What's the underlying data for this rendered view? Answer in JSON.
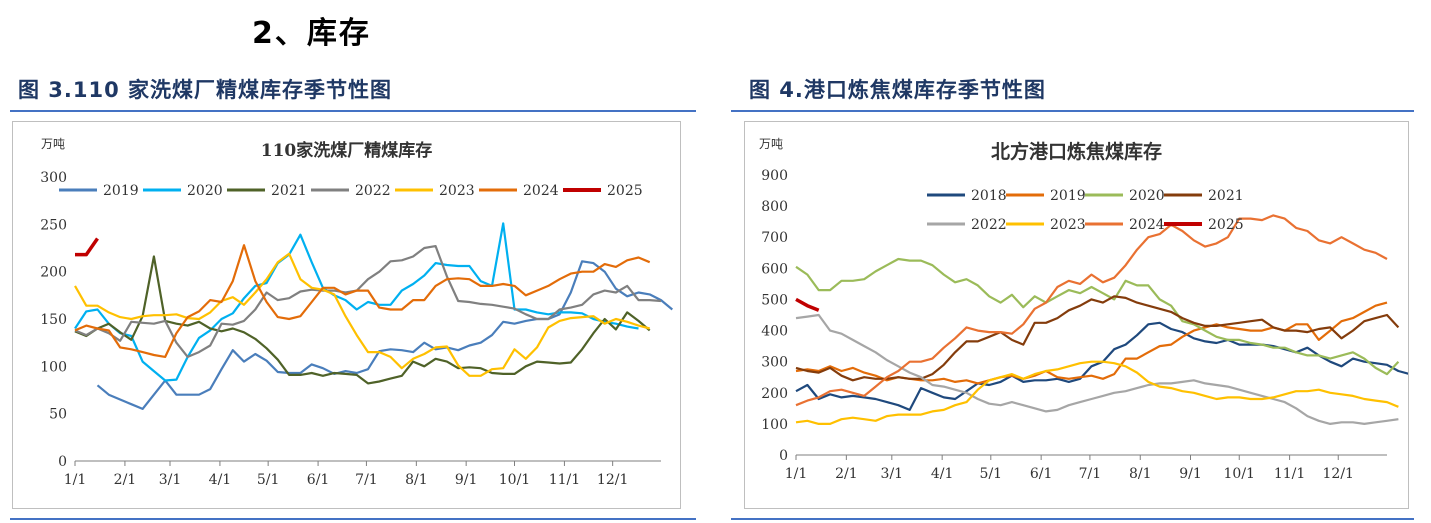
{
  "section_title": "2、库存",
  "figures": [
    {
      "title": "图 3.110 家洗煤厂精煤库存季节性图"
    },
    {
      "title": "图 4.港口炼焦煤库存季节性图"
    }
  ],
  "chart_data": [
    {
      "type": "line",
      "title": "110家洗煤厂精煤库存",
      "unit": "万吨",
      "ylim": [
        0,
        300
      ],
      "yticks": [
        0,
        50,
        100,
        150,
        200,
        250,
        300
      ],
      "xlim": [
        0,
        52
      ],
      "x_ticks": [
        {
          "label": "1/1",
          "week": 0
        },
        {
          "label": "2/1",
          "week": 4.43
        },
        {
          "label": "3/1",
          "week": 8.43
        },
        {
          "label": "4/1",
          "week": 12.86
        },
        {
          "label": "5/1",
          "week": 17.14
        },
        {
          "label": "6/1",
          "week": 21.57
        },
        {
          "label": "7/1",
          "week": 25.86
        },
        {
          "label": "8/1",
          "week": 30.29
        },
        {
          "label": "9/1",
          "week": 34.71
        },
        {
          "label": "10/1",
          "week": 39
        },
        {
          "label": "11/1",
          "week": 43.43
        },
        {
          "label": "12/1",
          "week": 47.71
        }
      ],
      "grid": false,
      "legend_position": "top",
      "series": [
        {
          "name": "2019",
          "color": "#4a7ebb",
          "start": 2,
          "values": [
            80,
            70,
            65,
            60,
            55,
            70,
            85,
            70,
            70,
            70,
            76,
            97,
            117,
            105,
            113,
            106,
            94,
            93,
            93,
            102,
            98,
            92,
            95,
            93,
            97,
            116,
            118,
            117,
            115,
            125,
            118,
            120,
            117,
            122,
            125,
            133,
            147,
            145,
            148,
            150,
            150,
            155,
            178,
            211,
            209,
            200,
            182,
            174,
            178,
            176,
            170,
            160
          ]
        },
        {
          "name": "2020",
          "color": "#00b0f0",
          "start": 0,
          "values": [
            140,
            158,
            160,
            145,
            135,
            132,
            105,
            95,
            85,
            86,
            110,
            130,
            138,
            150,
            156,
            172,
            185,
            188,
            209,
            218,
            239,
            210,
            183,
            175,
            170,
            160,
            168,
            165,
            165,
            180,
            187,
            196,
            209,
            207,
            206,
            206,
            190,
            185,
            251,
            160,
            160,
            157,
            155,
            157,
            157,
            156,
            150,
            147,
            145,
            142,
            140
          ]
        },
        {
          "name": "2021",
          "color": "#4f6228",
          "start": 0,
          "values": [
            137,
            132,
            140,
            145,
            136,
            128,
            153,
            216,
            148,
            145,
            143,
            147,
            140,
            137,
            140,
            136,
            129,
            119,
            107,
            91,
            91,
            93,
            90,
            93,
            92,
            91,
            82,
            84,
            87,
            90,
            105,
            100,
            108,
            105,
            98,
            99,
            98,
            93,
            92,
            92,
            100,
            105,
            104,
            103,
            104,
            118,
            135,
            150,
            139,
            157,
            148,
            138
          ]
        },
        {
          "name": "2022",
          "color": "#808080",
          "start": 0,
          "values": [
            138,
            133,
            140,
            135,
            127,
            147,
            146,
            145,
            148,
            125,
            110,
            115,
            122,
            145,
            144,
            148,
            160,
            178,
            170,
            172,
            179,
            181,
            180,
            180,
            178,
            180,
            192,
            200,
            211,
            212,
            216,
            225,
            227,
            195,
            169,
            168,
            166,
            165,
            163,
            161,
            155,
            150,
            150,
            160,
            162,
            165,
            176,
            180,
            178,
            185,
            170,
            170,
            169
          ]
        },
        {
          "name": "2023",
          "color": "#ffc000",
          "start": 0,
          "values": [
            185,
            164,
            164,
            157,
            152,
            150,
            153,
            154,
            154,
            155,
            151,
            150,
            157,
            169,
            173,
            165,
            178,
            192,
            210,
            219,
            192,
            183,
            181,
            176,
            153,
            133,
            115,
            115,
            110,
            98,
            108,
            113,
            120,
            121,
            101,
            90,
            90,
            97,
            98,
            118,
            108,
            120,
            141,
            148,
            151,
            152,
            153,
            145,
            150,
            147,
            143,
            140
          ]
        },
        {
          "name": "2024",
          "color": "#e36c09",
          "start": 0,
          "values": [
            138,
            143,
            140,
            138,
            120,
            118,
            115,
            112,
            110,
            135,
            152,
            158,
            170,
            168,
            190,
            228,
            190,
            168,
            152,
            150,
            153,
            168,
            183,
            183,
            176,
            180,
            180,
            162,
            160,
            160,
            170,
            170,
            185,
            192,
            193,
            192,
            185,
            185,
            187,
            185,
            175,
            180,
            185,
            192,
            198,
            200,
            200,
            208,
            205,
            212,
            215,
            210
          ]
        },
        {
          "name": "2025",
          "color": "#c00000",
          "start": 0,
          "values": [
            218,
            218,
            235
          ]
        }
      ]
    },
    {
      "type": "line",
      "title": "北方港口炼焦煤库存",
      "unit": "万吨",
      "ylim": [
        0,
        900
      ],
      "yticks": [
        0,
        100,
        200,
        300,
        400,
        500,
        600,
        700,
        800,
        900
      ],
      "xlim": [
        0,
        52
      ],
      "x_ticks": [
        {
          "label": "1/1",
          "week": 0
        },
        {
          "label": "2/1",
          "week": 4.43
        },
        {
          "label": "3/1",
          "week": 8.43
        },
        {
          "label": "4/1",
          "week": 12.86
        },
        {
          "label": "5/1",
          "week": 17.14
        },
        {
          "label": "6/1",
          "week": 21.57
        },
        {
          "label": "7/1",
          "week": 25.86
        },
        {
          "label": "8/1",
          "week": 30.29
        },
        {
          "label": "9/1",
          "week": 34.71
        },
        {
          "label": "10/1",
          "week": 39
        },
        {
          "label": "11/1",
          "week": 43.43
        },
        {
          "label": "12/1",
          "week": 47.71
        }
      ],
      "grid": false,
      "legend_position": "top",
      "series": [
        {
          "name": "2018",
          "color": "#1f497d",
          "start": 0,
          "values": [
            205,
            225,
            180,
            195,
            185,
            190,
            185,
            180,
            170,
            160,
            145,
            215,
            200,
            185,
            180,
            205,
            230,
            225,
            235,
            255,
            235,
            240,
            240,
            245,
            235,
            245,
            285,
            300,
            340,
            355,
            385,
            420,
            425,
            405,
            395,
            375,
            365,
            360,
            370,
            355,
            355,
            355,
            350,
            340,
            330,
            345,
            320,
            300,
            285,
            310,
            300,
            295,
            290,
            270,
            260
          ]
        },
        {
          "name": "2019",
          "color": "#e36c09",
          "start": 0,
          "values": [
            270,
            275,
            270,
            285,
            270,
            280,
            265,
            255,
            240,
            250,
            245,
            240,
            240,
            245,
            235,
            240,
            230,
            240,
            250,
            255,
            245,
            255,
            270,
            250,
            245,
            250,
            255,
            245,
            260,
            310,
            310,
            330,
            350,
            355,
            380,
            400,
            410,
            420,
            410,
            405,
            400,
            400,
            410,
            400,
            420,
            420,
            370,
            400,
            430,
            440,
            460,
            480,
            490
          ]
        },
        {
          "name": "2020",
          "color": "#9bbb59",
          "start": 0,
          "values": [
            605,
            580,
            530,
            530,
            560,
            560,
            565,
            590,
            610,
            630,
            625,
            625,
            610,
            580,
            555,
            565,
            545,
            510,
            490,
            515,
            475,
            510,
            490,
            510,
            530,
            520,
            540,
            520,
            500,
            560,
            545,
            545,
            500,
            480,
            430,
            420,
            400,
            380,
            370,
            370,
            360,
            355,
            345,
            345,
            330,
            320,
            320,
            310,
            320,
            330,
            310,
            280,
            260,
            300
          ]
        },
        {
          "name": "2021",
          "color": "#843c0c",
          "start": 0,
          "values": [
            280,
            270,
            265,
            280,
            255,
            240,
            250,
            245,
            245,
            250,
            245,
            245,
            260,
            290,
            330,
            365,
            365,
            380,
            395,
            370,
            355,
            425,
            425,
            440,
            465,
            480,
            500,
            490,
            510,
            505,
            490,
            480,
            470,
            460,
            440,
            425,
            415,
            415,
            420,
            425,
            430,
            435,
            410,
            400,
            400,
            395,
            405,
            410,
            375,
            400,
            430,
            440,
            450,
            410
          ]
        },
        {
          "name": "2022",
          "color": "#a6a6a6",
          "start": 0,
          "values": [
            440,
            445,
            450,
            400,
            390,
            370,
            350,
            330,
            305,
            285,
            265,
            250,
            225,
            220,
            210,
            200,
            180,
            165,
            160,
            170,
            160,
            150,
            140,
            145,
            160,
            170,
            180,
            190,
            200,
            205,
            215,
            225,
            230,
            230,
            235,
            240,
            230,
            225,
            220,
            210,
            200,
            190,
            180,
            170,
            150,
            125,
            110,
            100,
            105,
            105,
            100,
            105,
            110,
            115
          ]
        },
        {
          "name": "2023",
          "color": "#ffc000",
          "start": 0,
          "values": [
            105,
            110,
            100,
            100,
            115,
            120,
            115,
            110,
            125,
            130,
            130,
            130,
            140,
            145,
            160,
            170,
            210,
            240,
            250,
            260,
            245,
            260,
            270,
            275,
            285,
            295,
            300,
            300,
            295,
            285,
            265,
            235,
            220,
            215,
            205,
            200,
            190,
            180,
            185,
            185,
            180,
            180,
            185,
            195,
            205,
            205,
            210,
            200,
            195,
            190,
            180,
            175,
            170,
            155
          ]
        },
        {
          "name": "2024",
          "color": "#e97132",
          "start": 0,
          "values": [
            160,
            175,
            185,
            205,
            210,
            200,
            190,
            220,
            250,
            270,
            300,
            300,
            310,
            345,
            375,
            410,
            400,
            395,
            395,
            390,
            420,
            470,
            490,
            540,
            560,
            550,
            580,
            555,
            570,
            610,
            660,
            700,
            710,
            740,
            720,
            690,
            670,
            680,
            700,
            760,
            760,
            755,
            770,
            760,
            730,
            720,
            690,
            680,
            700,
            680,
            660,
            650,
            630
          ]
        },
        {
          "name": "2025",
          "color": "#c00000",
          "start": 0,
          "values": [
            500,
            480,
            465
          ]
        }
      ]
    }
  ]
}
